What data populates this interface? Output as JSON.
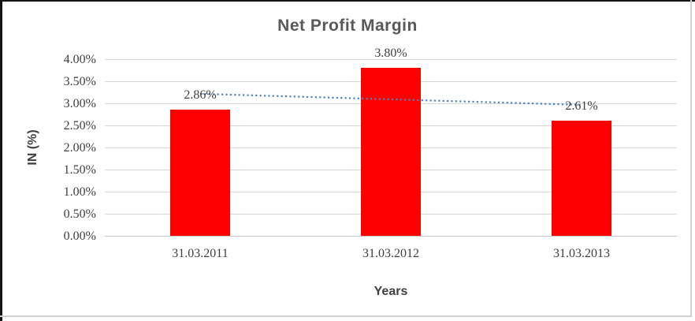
{
  "frame": {
    "background": "#ffffff",
    "border_dark_color": "#141414",
    "border_light_color": "#d2d2d2"
  },
  "chart_data": {
    "type": "bar",
    "title": "Net Profit Margin",
    "categories": [
      "31.03.2011",
      "31.03.2012",
      "31.03.2013"
    ],
    "values": [
      2.86,
      3.8,
      2.61
    ],
    "value_labels": [
      "2.86%",
      "3.80%",
      "2.61%"
    ],
    "xlabel": "Years",
    "ylabel": "IN (%)",
    "ylim": [
      0,
      4
    ],
    "ytick_step": 0.5,
    "ytick_labels": [
      "0.00%",
      "0.50%",
      "1.00%",
      "1.50%",
      "2.00%",
      "2.50%",
      "3.00%",
      "3.50%",
      "4.00%"
    ],
    "grid": true,
    "legend": false,
    "bar_color": "#ff0000",
    "gridline_color": "#d9d9d9",
    "axis_line_color": "#c6c6c6",
    "title_color": "#595959",
    "axis_title_color": "#404040",
    "tick_color": "#3f3f3f",
    "label_color": "#3f3f3f",
    "trendline": {
      "type": "linear",
      "style": "dotted",
      "color": "#4f81bd",
      "start_value": 3.215,
      "end_value": 2.965
    }
  }
}
